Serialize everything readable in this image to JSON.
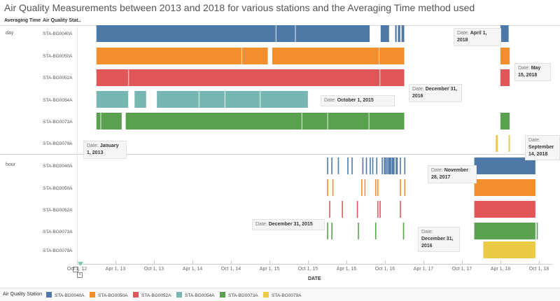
{
  "chart_data": {
    "type": "gantt",
    "title": "Air Quality Measurements between 2013 and 2018 for various stations and the Averaging Time method used",
    "row_headers": [
      "Averaging Time",
      "Air Quality Stat.."
    ],
    "x_axis": {
      "label": "DATE",
      "range": [
        "2012-10-01",
        "2018-10-01"
      ],
      "ticks": [
        "Oct 1, 12",
        "Apr 1, 13",
        "Oct 1, 13",
        "Apr 1, 14",
        "Oct 1, 14",
        "Apr 1, 15",
        "Oct 1, 15",
        "Apr 1, 16",
        "Oct 1, 16",
        "Apr 1, 17",
        "Oct 1, 17",
        "Apr 1, 18",
        "Oct 1, 18"
      ]
    },
    "colors": {
      "STA-BG0040A": "#4e79a7",
      "STA-BG0050A": "#f28e2b",
      "STA-BG0052A": "#e15759",
      "STA-BG0054A": "#76b7b2",
      "STA-BG0073A": "#59a14f",
      "STA-BG0079A": "#edc948"
    },
    "legend": {
      "title": "Air Quality Station",
      "items": [
        "STA-BG0040A",
        "STA-BG0050A",
        "STA-BG0052A",
        "STA-BG0054A",
        "STA-BG0073A",
        "STA-BG0079A"
      ]
    },
    "groups": [
      {
        "name": "day",
        "rows": [
          {
            "station": "STA-BG0040A",
            "segments": [
              [
                "2013-01-01",
                "2016-07-20"
              ],
              [
                "2016-09-10",
                "2016-10-20"
              ],
              [
                "2016-11-18",
                "2016-11-25"
              ],
              [
                "2016-12-01",
                "2016-12-12"
              ],
              [
                "2016-12-18",
                "2016-12-31"
              ],
              [
                "2018-04-01",
                "2018-05-10"
              ]
            ],
            "gaps": [
              "2015-05-01",
              "2015-08-01"
            ]
          },
          {
            "station": "STA-BG0050A",
            "segments": [
              [
                "2013-01-01",
                "2015-03-25"
              ],
              [
                "2015-04-15",
                "2016-12-31"
              ],
              [
                "2018-04-01",
                "2018-05-15"
              ]
            ],
            "gaps": [
              "2014-11-20",
              "2016-09-01"
            ]
          },
          {
            "station": "STA-BG0052A",
            "segments": [
              [
                "2013-01-01",
                "2016-12-31"
              ],
              [
                "2018-04-01",
                "2018-05-15"
              ]
            ],
            "gaps": [
              "2013-06-01",
              "2016-09-05"
            ]
          },
          {
            "station": "STA-BG0054A",
            "segments": [
              [
                "2013-01-01",
                "2013-06-01"
              ],
              [
                "2013-07-01",
                "2013-08-25"
              ],
              [
                "2013-10-15",
                "2015-10-01"
              ]
            ],
            "gaps": [
              "2014-05-01",
              "2014-09-01",
              "2015-02-15"
            ]
          },
          {
            "station": "STA-BG0073A",
            "segments": [
              [
                "2013-01-01",
                "2013-05-01"
              ],
              [
                "2013-05-20",
                "2016-12-31"
              ],
              [
                "2018-04-01",
                "2018-05-15"
              ]
            ],
            "gaps": [
              "2013-01-20",
              "2015-09-01",
              "2016-01-01",
              "2016-07-15"
            ]
          },
          {
            "station": "STA-BG0079A",
            "segments": [
              [
                "2018-03-10",
                "2018-03-20"
              ],
              [
                "2018-05-10",
                "2018-05-15"
              ]
            ],
            "gaps": []
          }
        ]
      },
      {
        "name": "hour",
        "rows": [
          {
            "station": "STA-BG0040A",
            "segments": [
              [
                "2017-11-28",
                "2018-09-14"
              ]
            ],
            "ticks": [
              "2015-12-31",
              "2016-01-20",
              "2016-02-20",
              "2016-04-05",
              "2016-04-25",
              "2016-06-15",
              "2016-07-02",
              "2016-07-20",
              "2016-08-01",
              "2016-08-20",
              "2016-09-15",
              "2016-09-25",
              "2016-10-01",
              "2016-10-08",
              "2016-10-15",
              "2016-10-20",
              "2016-10-25",
              "2016-11-01",
              "2016-11-05",
              "2016-11-10",
              "2016-11-20",
              "2016-11-25",
              "2016-12-10",
              "2016-12-31"
            ]
          },
          {
            "station": "STA-BG0050A",
            "segments": [
              [
                "2017-11-28",
                "2018-09-14"
              ]
            ],
            "ticks": [
              "2015-12-31",
              "2016-01-25",
              "2016-06-10",
              "2016-06-25",
              "2016-08-15",
              "2016-08-25",
              "2016-12-10",
              "2016-12-31"
            ]
          },
          {
            "station": "STA-BG0052A",
            "segments": [
              [
                "2017-11-28",
                "2018-09-14"
              ]
            ],
            "ticks": [
              "2016-01-10",
              "2016-03-10",
              "2016-05-20",
              "2016-08-25",
              "2016-09-05",
              "2016-12-10"
            ]
          },
          {
            "station": "STA-BG0073A",
            "segments": [
              [
                "2017-11-28",
                "2018-09-14"
              ]
            ],
            "ticks": [
              "2015-12-31",
              "2016-01-20",
              "2016-05-25",
              "2016-08-15",
              "2016-12-25",
              "2018-09-20"
            ]
          },
          {
            "station": "STA-BG0079A",
            "segments": [
              [
                "2018-01-10",
                "2018-09-14"
              ]
            ],
            "ticks": []
          }
        ]
      }
    ],
    "tooltips": [
      {
        "key": "Date",
        "value": "April 1, 2018"
      },
      {
        "key": "Date",
        "value": "December 31, 2016"
      },
      {
        "key": "Date",
        "value": "May 15, 2018"
      },
      {
        "key": "Date",
        "value": "October 1, 2015"
      },
      {
        "key": "Date",
        "value": "January 1, 2013"
      },
      {
        "key": "Date",
        "value": "September 14, 2018"
      },
      {
        "key": "Date",
        "value": "November 28, 2017"
      },
      {
        "key": "Date",
        "value": "December 31, 2015"
      },
      {
        "key": "Date",
        "value": "December 31, 2016"
      }
    ]
  }
}
